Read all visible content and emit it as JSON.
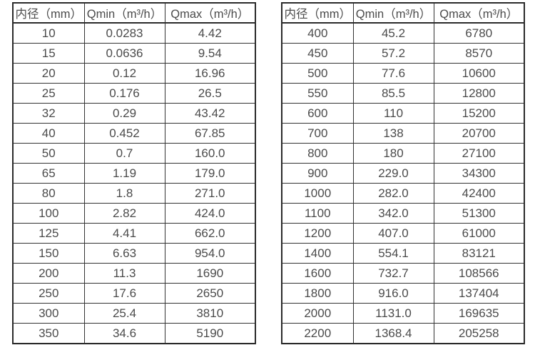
{
  "colors": {
    "background": "#ffffff",
    "border": "#333333",
    "outer_border": "#2a2a2a",
    "text": "#4b4b4b"
  },
  "tables": [
    {
      "name": "small-diameter-flow-spec",
      "headers": [
        "内径（mm）",
        "Qmin（m³/h）",
        "Qmax（m³/h）"
      ],
      "rows": [
        [
          "10",
          "0.0283",
          "4.42"
        ],
        [
          "15",
          "0.0636",
          "9.54"
        ],
        [
          "20",
          "0.12",
          "16.96"
        ],
        [
          "25",
          "0.176",
          "26.5"
        ],
        [
          "32",
          "0.29",
          "43.42"
        ],
        [
          "40",
          "0.452",
          "67.85"
        ],
        [
          "50",
          "0.7",
          "160.0"
        ],
        [
          "65",
          "1.19",
          "179.0"
        ],
        [
          "80",
          "1.8",
          "271.0"
        ],
        [
          "100",
          "2.82",
          "424.0"
        ],
        [
          "125",
          "4.41",
          "662.0"
        ],
        [
          "150",
          "6.63",
          "954.0"
        ],
        [
          "200",
          "11.3",
          "1690"
        ],
        [
          "250",
          "17.6",
          "2650"
        ],
        [
          "300",
          "25.4",
          "3810"
        ],
        [
          "350",
          "34.6",
          "5190"
        ]
      ]
    },
    {
      "name": "large-diameter-flow-spec",
      "headers": [
        "内径（mm）",
        "Qmin（m³/h）",
        "Qmax（m³/h）"
      ],
      "rows": [
        [
          "400",
          "45.2",
          "6780"
        ],
        [
          "450",
          "57.2",
          "8570"
        ],
        [
          "500",
          "77.6",
          "10600"
        ],
        [
          "550",
          "85.5",
          "12800"
        ],
        [
          "600",
          "110",
          "15200"
        ],
        [
          "700",
          "138",
          "20700"
        ],
        [
          "800",
          "180",
          "27100"
        ],
        [
          "900",
          "229.0",
          "34300"
        ],
        [
          "1000",
          "282.0",
          "42400"
        ],
        [
          "1100",
          "342.0",
          "51300"
        ],
        [
          "1200",
          "407.0",
          "61000"
        ],
        [
          "1400",
          "554.1",
          "83121"
        ],
        [
          "1600",
          "732.7",
          "108566"
        ],
        [
          "1800",
          "916.0",
          "137404"
        ],
        [
          "2000",
          "1131.0",
          "169635"
        ],
        [
          "2200",
          "1368.4",
          "205258"
        ]
      ]
    }
  ]
}
